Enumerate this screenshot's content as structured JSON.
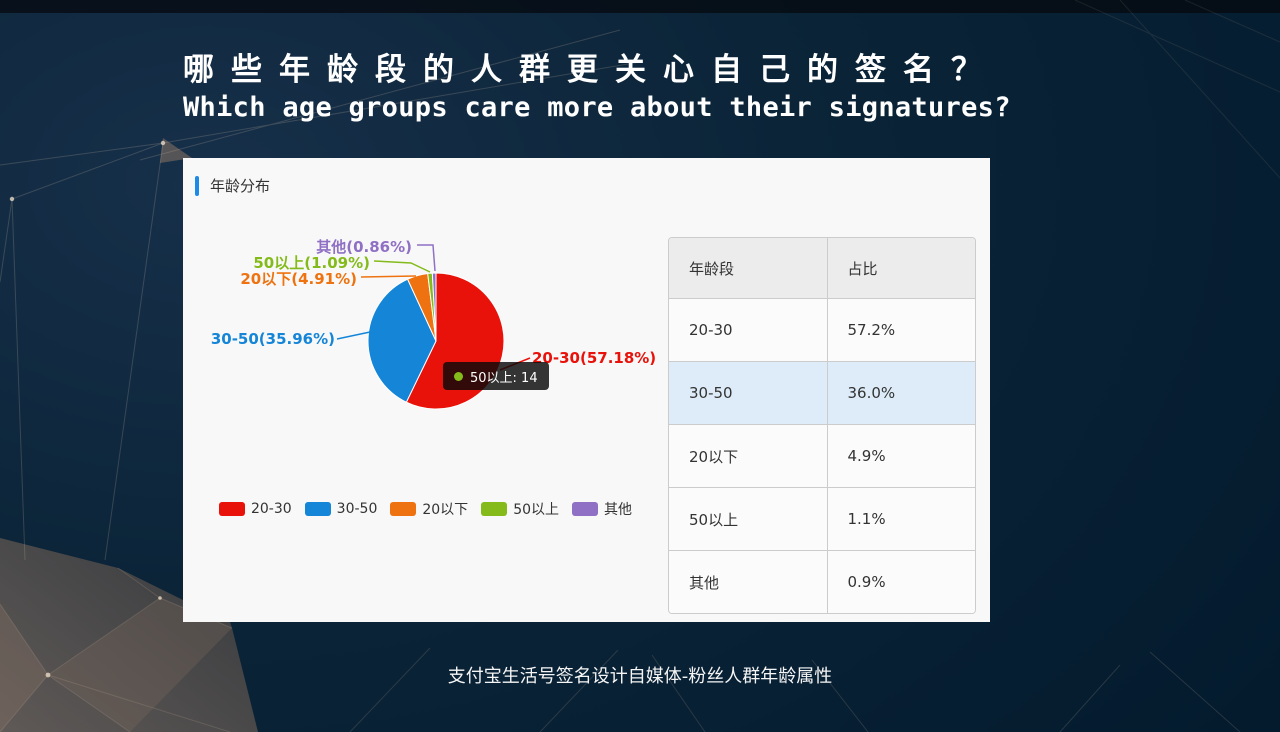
{
  "page": {
    "title_zh": "哪些年龄段的人群更关心自己的签名？",
    "title_en": "Which age groups care more about their signatures?",
    "footer": "支付宝生活号签名设计自媒体-粉丝人群年龄属性"
  },
  "card": {
    "header": "年龄分布",
    "accent_color": "#1e8ae8"
  },
  "chart_data": {
    "type": "pie",
    "title": "年龄分布",
    "categories": [
      "20-30",
      "30-50",
      "20以下",
      "50以上",
      "其他"
    ],
    "values": [
      57.18,
      35.96,
      4.91,
      1.09,
      0.86
    ],
    "unit": "%",
    "colors": [
      "#e8120b",
      "#1585d8",
      "#ee7310",
      "#84bb1a",
      "#8f70c5"
    ],
    "slice_labels": [
      "20-30(57.18%)",
      "30-50(35.96%)",
      "20以下(4.91%)",
      "50以上(1.09%)",
      "其他(0.86%)"
    ],
    "legend": [
      "20-30",
      "30-50",
      "20以下",
      "50以上",
      "其他"
    ],
    "legend_position": "bottom",
    "tooltip": {
      "text": "50以上: 14",
      "dot_color": "#84bb1a"
    }
  },
  "table": {
    "columns": [
      "年龄段",
      "占比"
    ],
    "rows": [
      {
        "age": "20-30",
        "pct": "57.2%",
        "highlight": false
      },
      {
        "age": "30-50",
        "pct": "36.0%",
        "highlight": true
      },
      {
        "age": "20以下",
        "pct": "4.9%",
        "highlight": false
      },
      {
        "age": "50以上",
        "pct": "1.1%",
        "highlight": false
      },
      {
        "age": "其他",
        "pct": "0.9%",
        "highlight": false
      }
    ],
    "highlight_color": "#ddecf8"
  }
}
